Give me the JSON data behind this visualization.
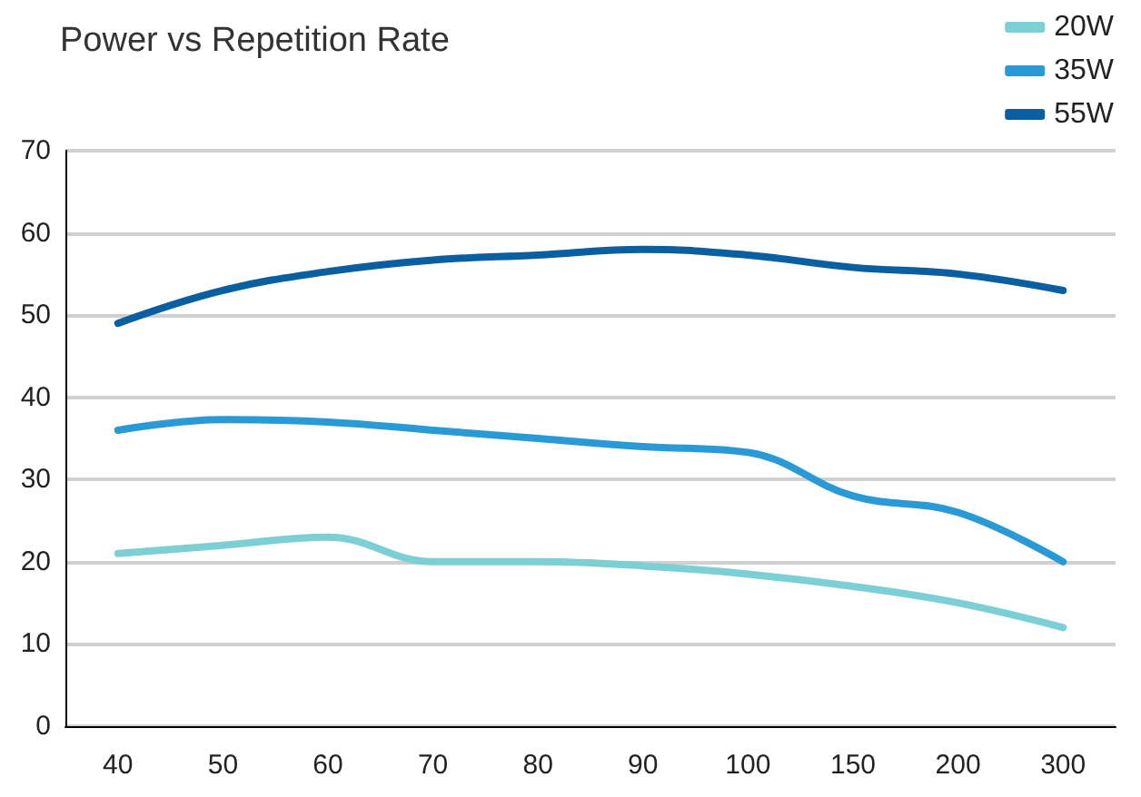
{
  "chart_data": {
    "type": "line",
    "title": "Power vs Repetition Rate",
    "categories": [
      "40",
      "50",
      "60",
      "70",
      "80",
      "90",
      "100",
      "150",
      "200",
      "300"
    ],
    "series": [
      {
        "name": "20W",
        "color": "#7dcfd6",
        "values": [
          21,
          22,
          23,
          20,
          20,
          19.5,
          18.5,
          17,
          15,
          12
        ]
      },
      {
        "name": "35W",
        "color": "#2a9ad6",
        "values": [
          36,
          37.3,
          37,
          36,
          35,
          34,
          33.3,
          28,
          26,
          20
        ]
      },
      {
        "name": "55W",
        "color": "#0a5fa0",
        "values": [
          49,
          53,
          55.3,
          56.7,
          57.3,
          58,
          57.3,
          55.8,
          55,
          53
        ]
      }
    ],
    "ylim": [
      0,
      70
    ],
    "yticks": [
      0,
      10,
      20,
      30,
      40,
      50,
      60,
      70
    ],
    "grid": "y",
    "legend": "top right",
    "marker": "none",
    "line_style": "solid"
  }
}
